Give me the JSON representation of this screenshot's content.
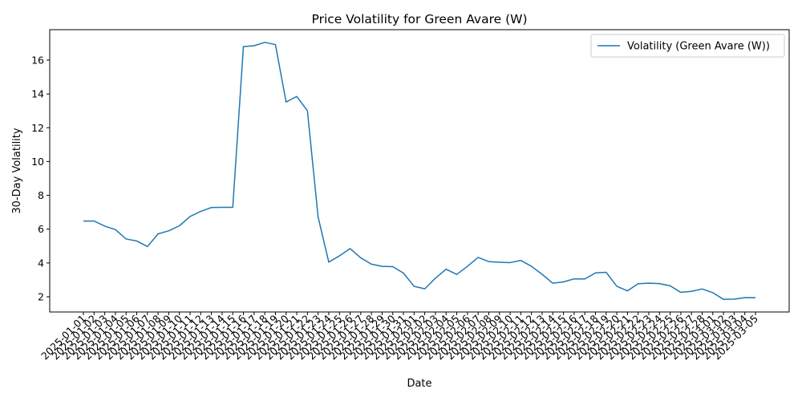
{
  "chart_data": {
    "type": "line",
    "title": "Price Volatility for Green Avare (W)",
    "xlabel": "Date",
    "ylabel": "30-Day Volatility",
    "ylim": [
      1.1,
      17.8
    ],
    "yticks": [
      2,
      4,
      6,
      8,
      10,
      12,
      14,
      16
    ],
    "grid": false,
    "legend": "top-right",
    "x": [
      "2025-01-01",
      "2025-01-02",
      "2025-01-03",
      "2025-01-04",
      "2025-01-05",
      "2025-01-06",
      "2025-01-07",
      "2025-01-08",
      "2025-01-09",
      "2025-01-10",
      "2025-01-11",
      "2025-01-12",
      "2025-01-13",
      "2025-01-14",
      "2025-01-15",
      "2025-01-16",
      "2025-01-17",
      "2025-01-18",
      "2025-01-19",
      "2025-01-20",
      "2025-01-21",
      "2025-01-22",
      "2025-01-23",
      "2025-01-24",
      "2025-01-25",
      "2025-01-26",
      "2025-01-27",
      "2025-01-28",
      "2025-01-29",
      "2025-01-30",
      "2025-01-31",
      "2025-02-01",
      "2025-02-02",
      "2025-02-03",
      "2025-02-04",
      "2025-02-05",
      "2025-02-06",
      "2025-02-07",
      "2025-02-08",
      "2025-02-09",
      "2025-02-10",
      "2025-02-11",
      "2025-02-12",
      "2025-02-13",
      "2025-02-14",
      "2025-02-15",
      "2025-02-16",
      "2025-02-17",
      "2025-02-18",
      "2025-02-19",
      "2025-02-20",
      "2025-02-21",
      "2025-02-22",
      "2025-02-23",
      "2025-02-24",
      "2025-02-25",
      "2025-02-26",
      "2025-02-27",
      "2025-02-28",
      "2025-03-01",
      "2025-03-02",
      "2025-03-03",
      "2025-03-04",
      "2025-03-05"
    ],
    "series": [
      {
        "name": "Volatility (Green Avare (W))",
        "color": "#1f77b4",
        "values": [
          6.48,
          6.48,
          6.18,
          5.97,
          5.42,
          5.3,
          4.97,
          5.72,
          5.9,
          6.2,
          6.75,
          7.05,
          7.28,
          7.29,
          7.29,
          16.8,
          16.85,
          17.05,
          16.92,
          13.52,
          13.85,
          13.0,
          6.72,
          4.05,
          4.42,
          4.85,
          4.3,
          3.93,
          3.8,
          3.78,
          3.4,
          2.62,
          2.47,
          3.1,
          3.63,
          3.32,
          3.8,
          4.33,
          4.08,
          4.04,
          4.02,
          4.15,
          3.8,
          3.33,
          2.8,
          2.88,
          3.06,
          3.05,
          3.41,
          3.45,
          2.62,
          2.35,
          2.77,
          2.8,
          2.78,
          2.65,
          2.26,
          2.32,
          2.46,
          2.24,
          1.85,
          1.86,
          1.95,
          1.94
        ]
      }
    ]
  }
}
